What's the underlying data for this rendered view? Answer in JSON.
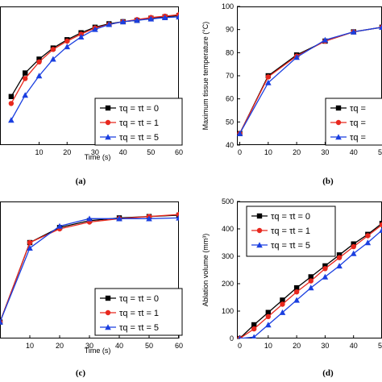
{
  "chart_data": [
    {
      "id": "a",
      "type": "line",
      "panel_label": "(a)",
      "xlabel": "Time (s)",
      "ylabel": "",
      "xlim": [
        -4,
        60
      ],
      "ylim": [
        0,
        1
      ],
      "x_ticks": [
        "10",
        "20",
        "30",
        "40",
        "50",
        "60"
      ],
      "y_ticks": [],
      "legend": {
        "position": "bottom-right",
        "entries": [
          "τq = τt = 0",
          "τq = τt = 1",
          "τq = τt = 5"
        ]
      },
      "series": [
        {
          "name": "τq = τt = 0",
          "color": "#000000",
          "marker": "square",
          "x": [
            0,
            5,
            10,
            15,
            20,
            25,
            30,
            35,
            40,
            45,
            50,
            55,
            60
          ],
          "y": [
            0.35,
            0.52,
            0.62,
            0.7,
            0.76,
            0.81,
            0.85,
            0.875,
            0.89,
            0.9,
            0.915,
            0.925,
            0.935
          ]
        },
        {
          "name": "τq = τt = 1",
          "color": "#e8281e",
          "marker": "circle",
          "x": [
            0,
            5,
            10,
            15,
            20,
            25,
            30,
            35,
            40,
            45,
            50,
            55,
            60
          ],
          "y": [
            0.3,
            0.48,
            0.6,
            0.69,
            0.75,
            0.8,
            0.845,
            0.87,
            0.89,
            0.905,
            0.92,
            0.93,
            0.94
          ]
        },
        {
          "name": "τq = τt = 5",
          "color": "#1a3fe0",
          "marker": "triangle",
          "x": [
            0,
            5,
            10,
            15,
            20,
            25,
            30,
            35,
            40,
            45,
            50,
            55,
            60
          ],
          "y": [
            0.18,
            0.36,
            0.5,
            0.62,
            0.71,
            0.78,
            0.835,
            0.87,
            0.89,
            0.9,
            0.91,
            0.92,
            0.925
          ]
        }
      ]
    },
    {
      "id": "b",
      "type": "line",
      "panel_label": "(b)",
      "xlabel": "",
      "ylabel": "Maximum tissue temperature (°C)",
      "xlim": [
        -1,
        50
      ],
      "ylim": [
        40,
        100
      ],
      "x_ticks": [
        "0",
        "10",
        "20",
        "30",
        "40",
        "5"
      ],
      "y_ticks": [
        "40",
        "50",
        "60",
        "70",
        "80",
        "90",
        "100"
      ],
      "legend": {
        "position": "bottom-right",
        "entries": [
          "τq =",
          "τq =",
          "τq ="
        ]
      },
      "series": [
        {
          "name": "τq =",
          "color": "#000000",
          "marker": "square",
          "x": [
            0,
            10,
            20,
            30,
            40,
            50
          ],
          "y": [
            45,
            70,
            79,
            85,
            89,
            91
          ]
        },
        {
          "name": "τq =",
          "color": "#e8281e",
          "marker": "circle",
          "x": [
            0,
            10,
            20,
            30,
            40,
            50
          ],
          "y": [
            45,
            69.5,
            78.5,
            85,
            89,
            91
          ]
        },
        {
          "name": "τq =",
          "color": "#1a3fe0",
          "marker": "triangle",
          "x": [
            0,
            10,
            20,
            30,
            40,
            50
          ],
          "y": [
            45,
            67,
            78,
            85.5,
            89,
            91
          ]
        }
      ]
    },
    {
      "id": "c",
      "type": "line",
      "panel_label": "(c)",
      "xlabel": "Time (s)",
      "ylabel": "",
      "xlim": [
        0,
        60
      ],
      "ylim": [
        0,
        1
      ],
      "x_ticks": [
        "10",
        "20",
        "30",
        "40",
        "50",
        "60"
      ],
      "y_ticks": [],
      "legend": {
        "position": "bottom-right",
        "entries": [
          "τq = τt = 0",
          "τq = τt = 1",
          "τq = τt = 5"
        ]
      },
      "series": [
        {
          "name": "τq = τt = 0",
          "color": "#000000",
          "marker": "square",
          "x": [
            0,
            10,
            20,
            30,
            40,
            50,
            60
          ],
          "y": [
            0.12,
            0.7,
            0.81,
            0.86,
            0.88,
            0.89,
            0.9
          ]
        },
        {
          "name": "τq = τt = 1",
          "color": "#e8281e",
          "marker": "circle",
          "x": [
            0,
            10,
            20,
            30,
            40,
            50,
            60
          ],
          "y": [
            0.12,
            0.7,
            0.8,
            0.85,
            0.875,
            0.89,
            0.905
          ]
        },
        {
          "name": "τq = τt = 5",
          "color": "#1a3fe0",
          "marker": "triangle",
          "x": [
            0,
            10,
            20,
            30,
            40,
            50,
            60
          ],
          "y": [
            0.12,
            0.66,
            0.82,
            0.875,
            0.875,
            0.875,
            0.88
          ]
        }
      ]
    },
    {
      "id": "d",
      "type": "line",
      "panel_label": "(d)",
      "xlabel": "",
      "ylabel": "Ablation volume (mm³)",
      "xlim": [
        -1,
        50
      ],
      "ylim": [
        0,
        500
      ],
      "x_ticks": [
        "0",
        "10",
        "20",
        "30",
        "40",
        "5"
      ],
      "y_ticks": [
        "0",
        "100",
        "200",
        "300",
        "400",
        "500"
      ],
      "legend": {
        "position": "top-left",
        "entries": [
          "τq = τt = 0",
          "τq = τt = 1",
          "τq = τt = 5"
        ]
      },
      "series": [
        {
          "name": "τq = τt = 0",
          "color": "#000000",
          "marker": "square",
          "x": [
            0,
            5,
            10,
            15,
            20,
            25,
            30,
            35,
            40,
            45,
            50
          ],
          "y": [
            0,
            50,
            95,
            140,
            185,
            225,
            265,
            305,
            345,
            380,
            420
          ]
        },
        {
          "name": "τq = τt = 1",
          "color": "#e8281e",
          "marker": "circle",
          "x": [
            0,
            5,
            10,
            15,
            20,
            25,
            30,
            35,
            40,
            45,
            50
          ],
          "y": [
            0,
            35,
            80,
            125,
            170,
            210,
            255,
            295,
            335,
            375,
            415
          ]
        },
        {
          "name": "τq = τt = 5",
          "color": "#1a3fe0",
          "marker": "triangle",
          "x": [
            0,
            5,
            10,
            15,
            20,
            25,
            30,
            35,
            40,
            45,
            50
          ],
          "y": [
            0,
            5,
            50,
            95,
            140,
            185,
            225,
            265,
            310,
            350,
            395
          ]
        }
      ]
    }
  ]
}
